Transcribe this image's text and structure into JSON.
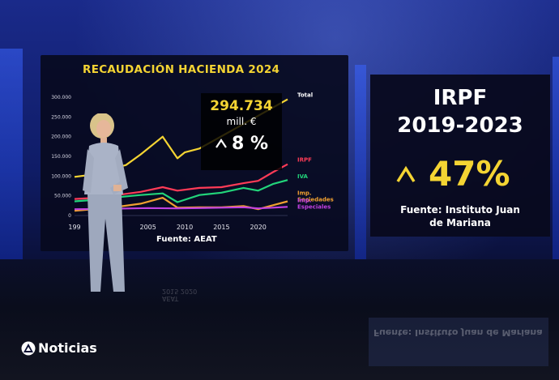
{
  "broadcast": {
    "logo_text": "Noticias",
    "colors": {
      "accent_yellow": "#f4d433",
      "panel_bg": "#080a1e",
      "studio_blue": "#1a2a8a"
    }
  },
  "chart": {
    "title": "RECAUDACIÓN HACIENDA 2024",
    "source": "Fuente: AEAT",
    "callout_value": "294.734",
    "callout_unit": "mill. €",
    "callout_change": "8 %"
  },
  "chart_data": {
    "type": "line",
    "title": "RECAUDACIÓN HACIENDA 2024",
    "xlabel": "",
    "ylabel": "",
    "y_tick_labels": [
      "0",
      "50.000",
      "100.000",
      "150.000",
      "200.000",
      "250.000",
      "300.000"
    ],
    "x_tick_labels": [
      "199",
      "2005",
      "2010",
      "2015",
      "2020"
    ],
    "xlim": [
      1995,
      2024
    ],
    "ylim": [
      0,
      300000
    ],
    "grid": false,
    "legend": "labels at line ends (right)",
    "series": [
      {
        "name": "Total",
        "color": "#f4d433",
        "points": [
          [
            1995,
            98000
          ],
          [
            1998,
            105000
          ],
          [
            2000,
            118000
          ],
          [
            2002,
            128000
          ],
          [
            2004,
            155000
          ],
          [
            2007,
            200000
          ],
          [
            2009,
            145000
          ],
          [
            2010,
            160000
          ],
          [
            2012,
            170000
          ],
          [
            2024,
            294734
          ]
        ]
      },
      {
        "name": "IRPF",
        "color": "#ff3b57",
        "points": [
          [
            1995,
            42000
          ],
          [
            1998,
            45000
          ],
          [
            2000,
            50000
          ],
          [
            2004,
            60000
          ],
          [
            2007,
            72000
          ],
          [
            2009,
            63000
          ],
          [
            2012,
            70000
          ],
          [
            2015,
            72000
          ],
          [
            2018,
            82000
          ],
          [
            2020,
            88000
          ],
          [
            2022,
            110000
          ],
          [
            2024,
            130000
          ]
        ]
      },
      {
        "name": "IVA",
        "color": "#22d47a",
        "points": [
          [
            1995,
            36000
          ],
          [
            1998,
            40000
          ],
          [
            2000,
            45000
          ],
          [
            2004,
            52000
          ],
          [
            2007,
            56000
          ],
          [
            2009,
            34000
          ],
          [
            2012,
            52000
          ],
          [
            2015,
            58000
          ],
          [
            2018,
            70000
          ],
          [
            2020,
            63000
          ],
          [
            2022,
            80000
          ],
          [
            2024,
            90000
          ]
        ]
      },
      {
        "name": "Imp. Sociedades",
        "color": "#f0a030",
        "points": [
          [
            1995,
            12000
          ],
          [
            2000,
            20000
          ],
          [
            2004,
            30000
          ],
          [
            2007,
            45000
          ],
          [
            2009,
            20000
          ],
          [
            2012,
            21000
          ],
          [
            2015,
            21000
          ],
          [
            2018,
            24000
          ],
          [
            2020,
            16000
          ],
          [
            2022,
            26000
          ],
          [
            2024,
            36000
          ]
        ]
      },
      {
        "name": "Imp. Especiales",
        "color": "#c040e0",
        "points": [
          [
            1995,
            16000
          ],
          [
            2000,
            17000
          ],
          [
            2005,
            19000
          ],
          [
            2009,
            18000
          ],
          [
            2012,
            19000
          ],
          [
            2015,
            20000
          ],
          [
            2018,
            21000
          ],
          [
            2020,
            18000
          ],
          [
            2022,
            20000
          ],
          [
            2024,
            22000
          ]
        ]
      }
    ]
  },
  "irpf_panel": {
    "title": "IRPF",
    "years": "2019-2023",
    "change": "47%",
    "source_line1": "Fuente: Instituto Juan",
    "source_line2": "de Mariana"
  },
  "reflection": {
    "text": "Fuente: Instituto Juan de Mariana",
    "chart_ticks": "2015   2020",
    "chart_source": "AEAT"
  }
}
